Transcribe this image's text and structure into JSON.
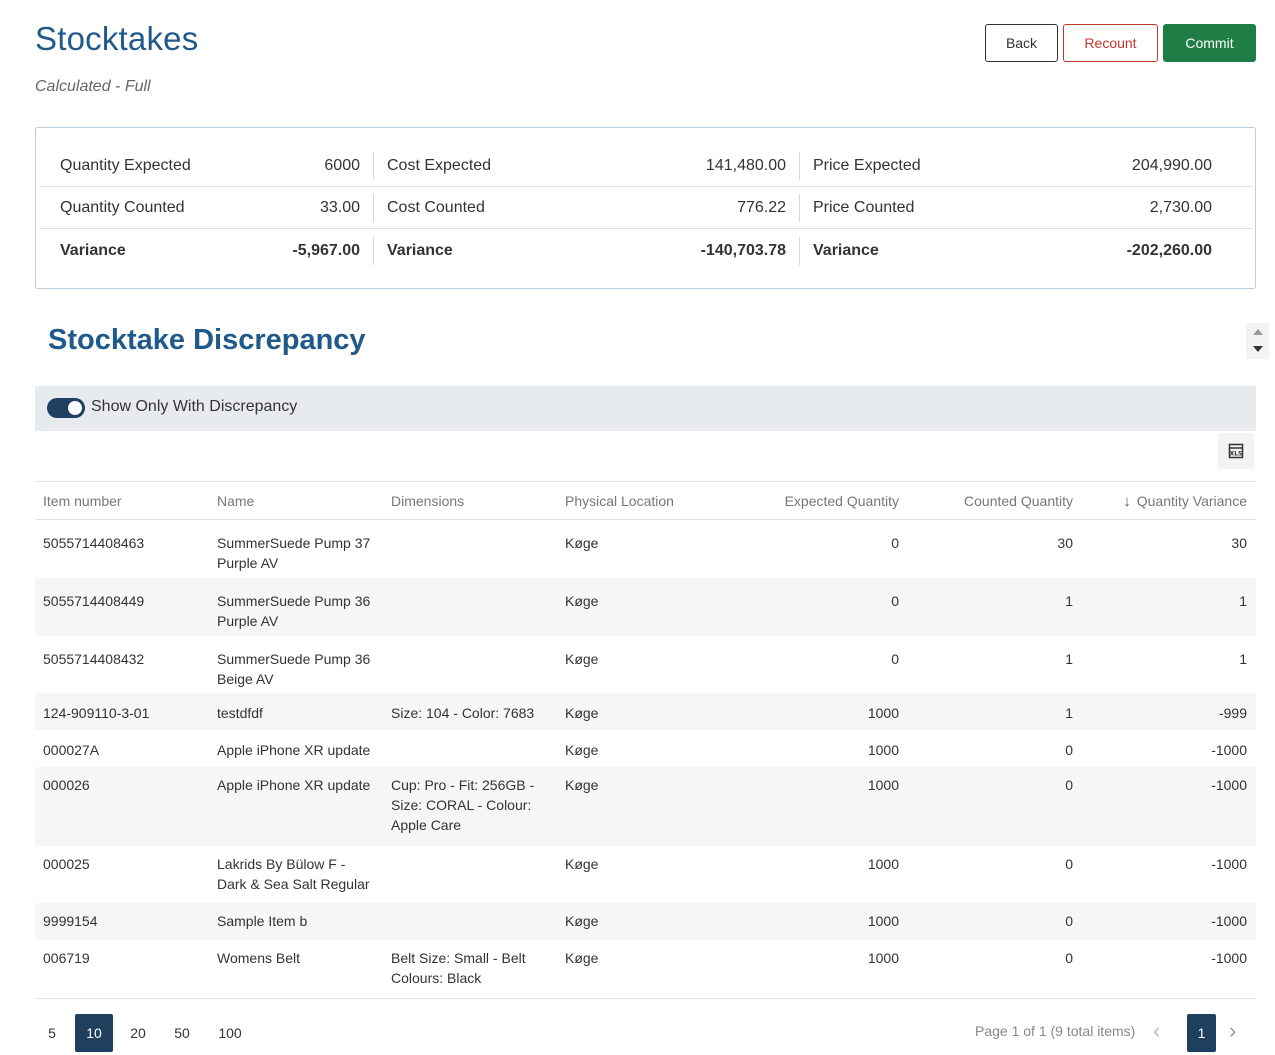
{
  "header": {
    "title": "Stocktakes",
    "subtitle": "Calculated - Full",
    "back_label": "Back",
    "recount_label": "Recount",
    "commit_label": "Commit"
  },
  "summary": {
    "rows": [
      {
        "q_label": "Quantity Expected",
        "q_value": "6000",
        "c_label": "Cost Expected",
        "c_value": "141,480.00",
        "p_label": "Price Expected",
        "p_value": "204,990.00"
      },
      {
        "q_label": "Quantity Counted",
        "q_value": "33.00",
        "c_label": "Cost Counted",
        "c_value": "776.22",
        "p_label": "Price Counted",
        "p_value": "2,730.00"
      },
      {
        "q_label": "Variance",
        "q_value": "-5,967.00",
        "c_label": "Variance",
        "c_value": "-140,703.78",
        "p_label": "Variance",
        "p_value": "-202,260.00"
      }
    ]
  },
  "discrepancy": {
    "title": "Stocktake Discrepancy",
    "toggle_label": "Show Only With Discrepancy",
    "toggle_on": true,
    "export_icon": "excel-export-icon"
  },
  "table": {
    "columns": [
      "Item number",
      "Name",
      "Dimensions",
      "Physical Location",
      "Expected Quantity",
      "Counted Quantity",
      "Quantity Variance"
    ],
    "rows": [
      {
        "item": "5055714408463",
        "name1": "SummerSuede Pump 37",
        "name2": "Purple AV",
        "dim1": "",
        "dim2": "",
        "dim3": "",
        "loc": "Køge",
        "exp": "0",
        "cnt": "30",
        "var": "30"
      },
      {
        "item": "5055714408449",
        "name1": "SummerSuede Pump 36",
        "name2": "Purple AV",
        "dim1": "",
        "dim2": "",
        "dim3": "",
        "loc": "Køge",
        "exp": "0",
        "cnt": "1",
        "var": "1"
      },
      {
        "item": "5055714408432",
        "name1": "SummerSuede Pump 36",
        "name2": "Beige AV",
        "dim1": "",
        "dim2": "",
        "dim3": "",
        "loc": "Køge",
        "exp": "0",
        "cnt": "1",
        "var": "1"
      },
      {
        "item": "124-909110-3-01",
        "name1": "testdfdf",
        "name2": "",
        "dim1": "Size: 104 - Color: 7683",
        "dim2": "",
        "dim3": "",
        "loc": "Køge",
        "exp": "1000",
        "cnt": "1",
        "var": "-999"
      },
      {
        "item": "000027A",
        "name1": "Apple iPhone XR update",
        "name2": "",
        "dim1": "",
        "dim2": "",
        "dim3": "",
        "loc": "Køge",
        "exp": "1000",
        "cnt": "0",
        "var": "-1000"
      },
      {
        "item": "000026",
        "name1": "Apple iPhone XR update",
        "name2": "",
        "dim1": "Cup: Pro - Fit: 256GB -",
        "dim2": "Size: CORAL - Colour:",
        "dim3": "Apple Care",
        "loc": "Køge",
        "exp": "1000",
        "cnt": "0",
        "var": "-1000"
      },
      {
        "item": "000025",
        "name1": "Lakrids By Bülow F -",
        "name2": "Dark & Sea Salt Regular",
        "dim1": "",
        "dim2": "",
        "dim3": "",
        "loc": "Køge",
        "exp": "1000",
        "cnt": "0",
        "var": "-1000"
      },
      {
        "item": "9999154",
        "name1": "Sample Item b",
        "name2": "",
        "dim1": "",
        "dim2": "",
        "dim3": "",
        "loc": "Køge",
        "exp": "1000",
        "cnt": "0",
        "var": "-1000"
      },
      {
        "item": "006719",
        "name1": "Womens Belt",
        "name2": "",
        "dim1": "Belt Size: Small - Belt",
        "dim2": "Colours: Black",
        "dim3": "",
        "loc": "Køge",
        "exp": "1000",
        "cnt": "0",
        "var": "-1000"
      }
    ]
  },
  "pagination": {
    "sizes": [
      "5",
      "10",
      "20",
      "50",
      "100"
    ],
    "active_size": "10",
    "info": "Page 1 of 1 (9 total items)",
    "current_page": "1"
  },
  "colors": {
    "accent": "#1f5a8a",
    "commit": "#1e7e45",
    "recount": "#c0392b",
    "active": "#1f3f5f"
  }
}
